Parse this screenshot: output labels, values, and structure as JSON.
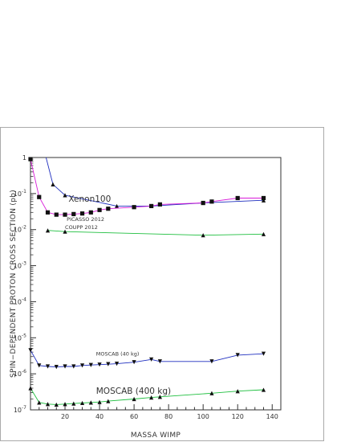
{
  "chart_data": {
    "type": "line",
    "xlabel": "MASSA WIMP",
    "ylabel": "SPIN−DEPENDENT PROTON CROSS SECTION (pb)",
    "xlim": [
      0,
      145
    ],
    "ylim": [
      1e-07,
      1
    ],
    "yscale": "log",
    "x_ticks": [
      "20",
      "40",
      "60",
      "80",
      "100",
      "120",
      "140"
    ],
    "y_ticks": [
      {
        "base": "10",
        "exp": "-7"
      },
      {
        "base": "10",
        "exp": "-6"
      },
      {
        "base": "10",
        "exp": "-5"
      },
      {
        "base": "10",
        "exp": "-4"
      },
      {
        "base": "10",
        "exp": "-3"
      },
      {
        "base": "10",
        "exp": "-2"
      },
      {
        "base": "10",
        "exp": "-1"
      },
      {
        "base": "1",
        "exp": ""
      }
    ],
    "grid": false,
    "series": [
      {
        "name": "Xenon100",
        "color": "#1f2fbf",
        "marker": "triangle-up",
        "x": [
          9,
          13,
          20,
          50,
          70,
          100,
          135
        ],
        "y": [
          5,
          0.18,
          0.09,
          0.045,
          0.045,
          0.055,
          0.065
        ]
      },
      {
        "name": "PICASSO 2012",
        "color": "#d81bd8",
        "marker": "square",
        "x": [
          0,
          5,
          10,
          15,
          20,
          25,
          30,
          35,
          40,
          45,
          60,
          70,
          75,
          100,
          105,
          120,
          135
        ],
        "y": [
          0.9,
          0.08,
          0.03,
          0.026,
          0.026,
          0.027,
          0.028,
          0.03,
          0.035,
          0.038,
          0.042,
          0.045,
          0.05,
          0.055,
          0.06,
          0.075,
          0.075
        ]
      },
      {
        "name": "COUPP 2012",
        "color": "#1fbf3f",
        "marker": "triangle-up",
        "x": [
          10,
          20,
          100,
          135
        ],
        "y": [
          0.0095,
          0.0088,
          0.007,
          0.0075
        ]
      },
      {
        "name": "MOSCAB (40 kg)",
        "color": "#1f2fbf",
        "marker": "triangle-down",
        "x": [
          0,
          5,
          10,
          15,
          20,
          25,
          30,
          35,
          40,
          45,
          50,
          60,
          70,
          75,
          105,
          120,
          135
        ],
        "y": [
          4.5e-06,
          1.7e-06,
          1.6e-06,
          1.55e-06,
          1.6e-06,
          1.6e-06,
          1.7e-06,
          1.75e-06,
          1.8e-06,
          1.85e-06,
          1.9e-06,
          2.1e-06,
          2.5e-06,
          2.2e-06,
          2.2e-06,
          3.3e-06,
          3.6e-06
        ]
      },
      {
        "name": "MOSCAB (400 kg)",
        "color": "#1fbf3f",
        "marker": "triangle-up",
        "x": [
          0,
          5,
          10,
          15,
          20,
          25,
          30,
          35,
          40,
          45,
          60,
          70,
          75,
          105,
          120,
          135
        ],
        "y": [
          4e-07,
          1.6e-07,
          1.45e-07,
          1.4e-07,
          1.45e-07,
          1.5e-07,
          1.55e-07,
          1.6e-07,
          1.65e-07,
          1.75e-07,
          2e-07,
          2.2e-07,
          2.3e-07,
          2.9e-07,
          3.3e-07,
          3.6e-07
        ]
      }
    ],
    "annotations": [
      {
        "text": "Xenon100",
        "size": "large",
        "at": [
          22,
          0.06
        ]
      },
      {
        "text": "PICASSO 2012",
        "size": "small",
        "at": [
          21,
          0.0175
        ]
      },
      {
        "text": "COUPP 2012",
        "size": "small",
        "at": [
          20,
          0.0105
        ]
      },
      {
        "text": "MOSCAB (40 kg)",
        "size": "small",
        "at": [
          38,
          3.2e-06
        ]
      },
      {
        "text": "MOSCAB (400 kg)",
        "size": "large",
        "at": [
          38,
          2.8e-07
        ]
      }
    ]
  }
}
